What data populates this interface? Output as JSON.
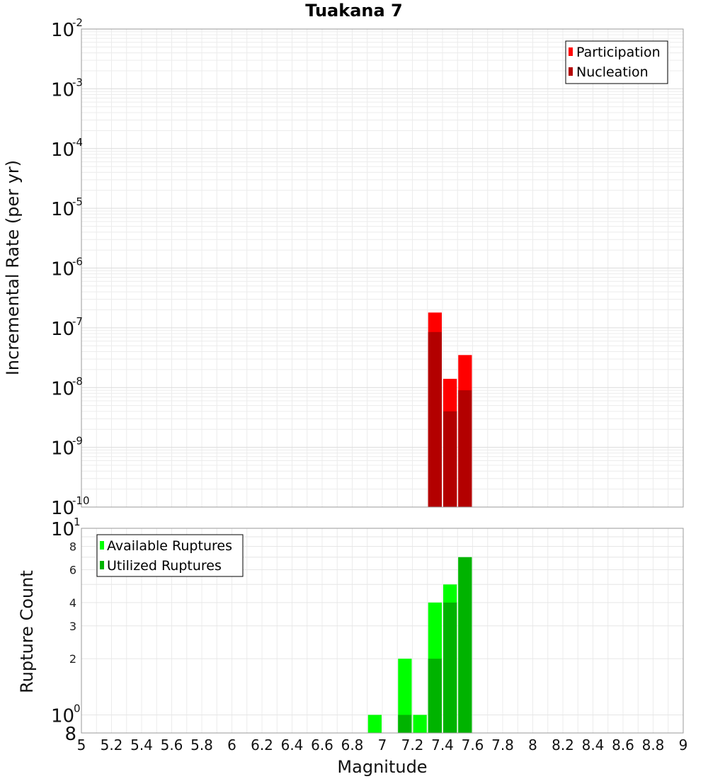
{
  "figure": {
    "title": "Tuakana 7"
  },
  "chart_data": [
    {
      "type": "bar",
      "title": "Tuakana 7",
      "xlabel": "",
      "ylabel": "Incremental Rate (per yr)",
      "xlim": [
        5,
        9
      ],
      "ylim": [
        1e-10,
        0.01
      ],
      "yscale": "log",
      "grid": true,
      "legend_position": "top-right",
      "bar_width": 0.1,
      "y_tick_exponents": [
        "-2",
        "-3",
        "-4",
        "-5",
        "-6",
        "-7",
        "-8",
        "-9",
        "-10"
      ],
      "series": [
        {
          "name": "Participation",
          "color": "#ff0000",
          "x": [
            7.35,
            7.45,
            7.55
          ],
          "values": [
            1.8e-07,
            1.4e-08,
            3.5e-08
          ]
        },
        {
          "name": "Nucleation",
          "color": "#b30000",
          "x": [
            7.35,
            7.45,
            7.55
          ],
          "values": [
            8.5e-08,
            4e-09,
            9e-09
          ]
        }
      ]
    },
    {
      "type": "bar",
      "title": "",
      "xlabel": "Magnitude",
      "ylabel": "Rupture Count",
      "xlim": [
        5,
        9
      ],
      "ylim": [
        0.8,
        10
      ],
      "yscale": "log",
      "grid": true,
      "legend_position": "top-left",
      "bar_width": 0.1,
      "x_ticks": [
        "5",
        "5.2",
        "5.4",
        "5.6",
        "5.8",
        "6",
        "6.2",
        "6.4",
        "6.6",
        "6.8",
        "7",
        "7.2",
        "7.4",
        "7.6",
        "7.8",
        "8",
        "8.2",
        "8.4",
        "8.6",
        "8.8",
        "9"
      ],
      "y_minor_ticks": [
        "2",
        "3",
        "4",
        "6",
        "8"
      ],
      "y_major_ticks": [
        {
          "base": "10",
          "exp": "1"
        },
        {
          "base": "10",
          "exp": "0"
        }
      ],
      "y_bottom_label": "8",
      "series": [
        {
          "name": "Available Ruptures",
          "color": "#00ff00",
          "x": [
            6.95,
            7.15,
            7.25,
            7.35,
            7.45,
            7.55
          ],
          "values": [
            1,
            2,
            1,
            4,
            5,
            7
          ]
        },
        {
          "name": "Utilized Ruptures",
          "color": "#00b300",
          "x": [
            7.15,
            7.35,
            7.45,
            7.55
          ],
          "values": [
            1,
            2,
            4,
            7
          ]
        }
      ]
    }
  ]
}
